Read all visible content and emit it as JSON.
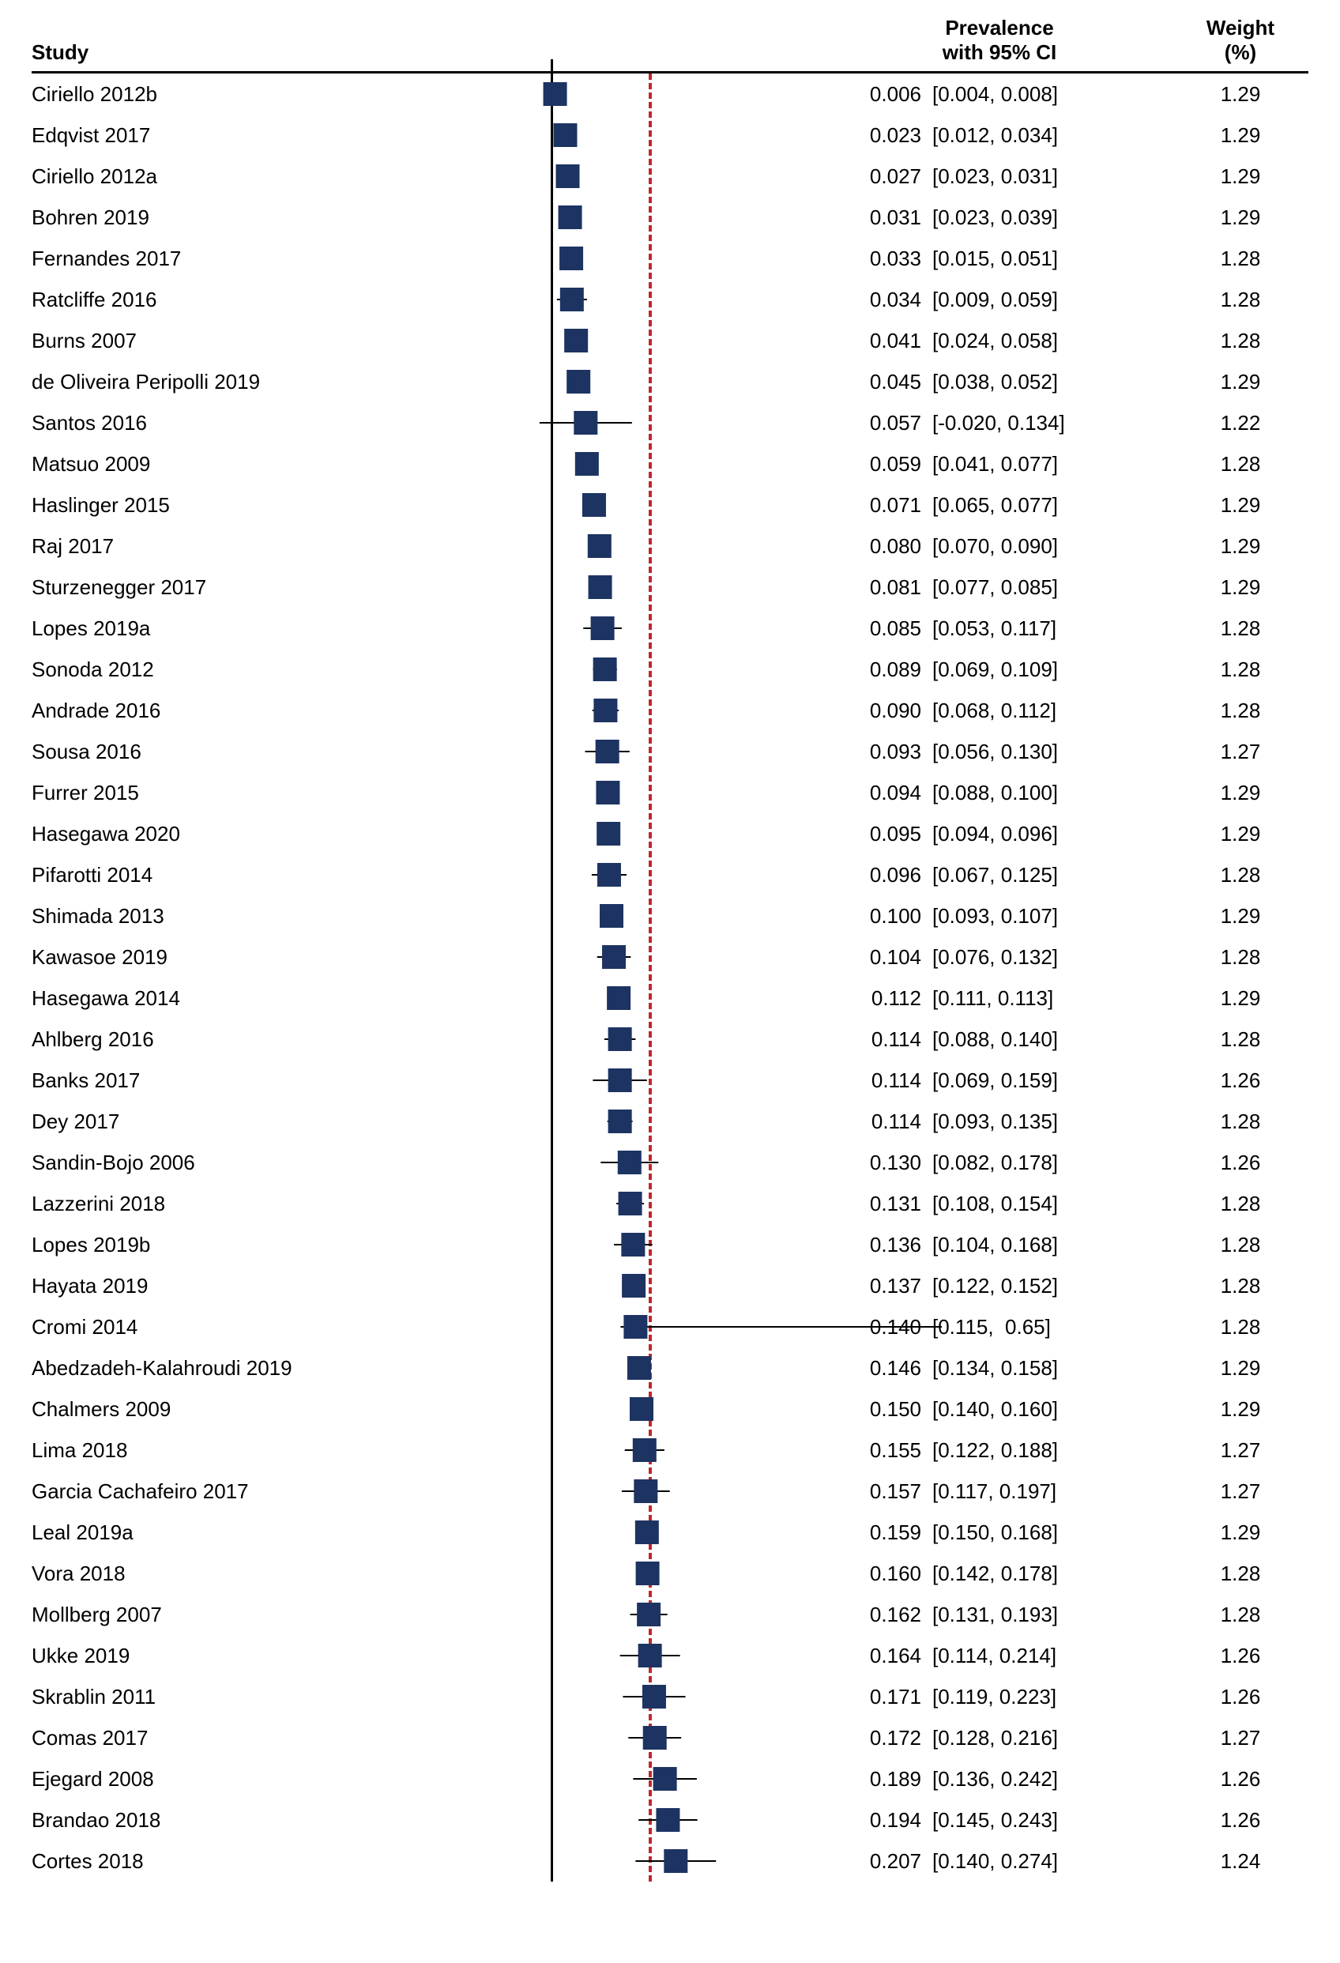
{
  "chart": {
    "type": "forest-plot",
    "header": {
      "study": "Study",
      "prevalence_line1": "Prevalence",
      "prevalence_line2": "with 95% CI",
      "weight_line1": "Weight",
      "weight_line2": "(%)"
    },
    "plot": {
      "xmin": -0.05,
      "xmax": 0.45,
      "zero_line_at": 0.0,
      "ref_line_at": 0.165,
      "ref_line_color": "#c1272d",
      "ref_line_dash": "6,10",
      "marker_color": "#1d3362",
      "marker_size": 30,
      "ci_line_color": "#000000",
      "background_color": "#ffffff"
    },
    "font": {
      "family": "Arial",
      "size_pt": 20,
      "header_weight": 700,
      "row_weight": 400
    },
    "studies": [
      {
        "label": "Ciriello 2012b",
        "pe": 0.006,
        "ci_lo": 0.004,
        "ci_hi": 0.008,
        "weight": 1.29,
        "pe_str": "0.006",
        "ci_str": "[0.004, 0.008]",
        "w_str": "1.29"
      },
      {
        "label": "Edqvist 2017",
        "pe": 0.023,
        "ci_lo": 0.012,
        "ci_hi": 0.034,
        "weight": 1.29,
        "pe_str": "0.023",
        "ci_str": "[0.012, 0.034]",
        "w_str": "1.29"
      },
      {
        "label": "Ciriello 2012a",
        "pe": 0.027,
        "ci_lo": 0.023,
        "ci_hi": 0.031,
        "weight": 1.29,
        "pe_str": "0.027",
        "ci_str": "[0.023, 0.031]",
        "w_str": "1.29"
      },
      {
        "label": "Bohren 2019",
        "pe": 0.031,
        "ci_lo": 0.023,
        "ci_hi": 0.039,
        "weight": 1.29,
        "pe_str": "0.031",
        "ci_str": "[0.023, 0.039]",
        "w_str": "1.29"
      },
      {
        "label": "Fernandes 2017",
        "pe": 0.033,
        "ci_lo": 0.015,
        "ci_hi": 0.051,
        "weight": 1.28,
        "pe_str": "0.033",
        "ci_str": "[0.015, 0.051]",
        "w_str": "1.28"
      },
      {
        "label": "Ratcliffe 2016",
        "pe": 0.034,
        "ci_lo": 0.009,
        "ci_hi": 0.059,
        "weight": 1.28,
        "pe_str": "0.034",
        "ci_str": "[0.009, 0.059]",
        "w_str": "1.28"
      },
      {
        "label": "Burns 2007",
        "pe": 0.041,
        "ci_lo": 0.024,
        "ci_hi": 0.058,
        "weight": 1.28,
        "pe_str": "0.041",
        "ci_str": "[0.024, 0.058]",
        "w_str": "1.28"
      },
      {
        "label": "de Oliveira Peripolli 2019",
        "pe": 0.045,
        "ci_lo": 0.038,
        "ci_hi": 0.052,
        "weight": 1.29,
        "pe_str": "0.045",
        "ci_str": "[0.038, 0.052]",
        "w_str": "1.29"
      },
      {
        "label": "Santos 2016",
        "pe": 0.057,
        "ci_lo": -0.02,
        "ci_hi": 0.134,
        "weight": 1.22,
        "pe_str": "0.057",
        "ci_str": "[-0.020, 0.134]",
        "w_str": "1.22"
      },
      {
        "label": "Matsuo 2009",
        "pe": 0.059,
        "ci_lo": 0.041,
        "ci_hi": 0.077,
        "weight": 1.28,
        "pe_str": "0.059",
        "ci_str": "[0.041, 0.077]",
        "w_str": "1.28"
      },
      {
        "label": "Haslinger 2015",
        "pe": 0.071,
        "ci_lo": 0.065,
        "ci_hi": 0.077,
        "weight": 1.29,
        "pe_str": "0.071",
        "ci_str": "[0.065, 0.077]",
        "w_str": "1.29"
      },
      {
        "label": "Raj 2017",
        "pe": 0.08,
        "ci_lo": 0.07,
        "ci_hi": 0.09,
        "weight": 1.29,
        "pe_str": "0.080",
        "ci_str": "[0.070, 0.090]",
        "w_str": "1.29"
      },
      {
        "label": "Sturzenegger 2017",
        "pe": 0.081,
        "ci_lo": 0.077,
        "ci_hi": 0.085,
        "weight": 1.29,
        "pe_str": "0.081",
        "ci_str": "[0.077, 0.085]",
        "w_str": "1.29"
      },
      {
        "label": "Lopes 2019a",
        "pe": 0.085,
        "ci_lo": 0.053,
        "ci_hi": 0.117,
        "weight": 1.28,
        "pe_str": "0.085",
        "ci_str": "[0.053, 0.117]",
        "w_str": "1.28"
      },
      {
        "label": "Sonoda 2012",
        "pe": 0.089,
        "ci_lo": 0.069,
        "ci_hi": 0.109,
        "weight": 1.28,
        "pe_str": "0.089",
        "ci_str": "[0.069, 0.109]",
        "w_str": "1.28"
      },
      {
        "label": "Andrade 2016",
        "pe": 0.09,
        "ci_lo": 0.068,
        "ci_hi": 0.112,
        "weight": 1.28,
        "pe_str": "0.090",
        "ci_str": "[0.068, 0.112]",
        "w_str": "1.28"
      },
      {
        "label": "Sousa 2016",
        "pe": 0.093,
        "ci_lo": 0.056,
        "ci_hi": 0.13,
        "weight": 1.27,
        "pe_str": "0.093",
        "ci_str": "[0.056, 0.130]",
        "w_str": "1.27"
      },
      {
        "label": "Furrer 2015",
        "pe": 0.094,
        "ci_lo": 0.088,
        "ci_hi": 0.1,
        "weight": 1.29,
        "pe_str": "0.094",
        "ci_str": "[0.088, 0.100]",
        "w_str": "1.29"
      },
      {
        "label": "Hasegawa 2020",
        "pe": 0.095,
        "ci_lo": 0.094,
        "ci_hi": 0.096,
        "weight": 1.29,
        "pe_str": "0.095",
        "ci_str": "[0.094, 0.096]",
        "w_str": "1.29"
      },
      {
        "label": "Pifarotti 2014",
        "pe": 0.096,
        "ci_lo": 0.067,
        "ci_hi": 0.125,
        "weight": 1.28,
        "pe_str": "0.096",
        "ci_str": "[0.067, 0.125]",
        "w_str": "1.28"
      },
      {
        "label": "Shimada 2013",
        "pe": 0.1,
        "ci_lo": 0.093,
        "ci_hi": 0.107,
        "weight": 1.29,
        "pe_str": "0.100",
        "ci_str": "[0.093, 0.107]",
        "w_str": "1.29"
      },
      {
        "label": "Kawasoe 2019",
        "pe": 0.104,
        "ci_lo": 0.076,
        "ci_hi": 0.132,
        "weight": 1.28,
        "pe_str": "0.104",
        "ci_str": "[0.076, 0.132]",
        "w_str": "1.28"
      },
      {
        "label": "Hasegawa 2014",
        "pe": 0.112,
        "ci_lo": 0.111,
        "ci_hi": 0.113,
        "weight": 1.29,
        "pe_str": "0.112",
        "ci_str": "[0.111, 0.113]",
        "w_str": "1.29"
      },
      {
        "label": "Ahlberg 2016",
        "pe": 0.114,
        "ci_lo": 0.088,
        "ci_hi": 0.14,
        "weight": 1.28,
        "pe_str": "0.114",
        "ci_str": "[0.088, 0.140]",
        "w_str": "1.28"
      },
      {
        "label": "Banks 2017",
        "pe": 0.114,
        "ci_lo": 0.069,
        "ci_hi": 0.159,
        "weight": 1.26,
        "pe_str": "0.114",
        "ci_str": "[0.069, 0.159]",
        "w_str": "1.26"
      },
      {
        "label": "Dey 2017",
        "pe": 0.114,
        "ci_lo": 0.093,
        "ci_hi": 0.135,
        "weight": 1.28,
        "pe_str": "0.114",
        "ci_str": "[0.093, 0.135]",
        "w_str": "1.28"
      },
      {
        "label": "Sandin-Bojo 2006",
        "pe": 0.13,
        "ci_lo": 0.082,
        "ci_hi": 0.178,
        "weight": 1.26,
        "pe_str": "0.130",
        "ci_str": "[0.082, 0.178]",
        "w_str": "1.26"
      },
      {
        "label": "Lazzerini 2018",
        "pe": 0.131,
        "ci_lo": 0.108,
        "ci_hi": 0.154,
        "weight": 1.28,
        "pe_str": "0.131",
        "ci_str": "[0.108, 0.154]",
        "w_str": "1.28"
      },
      {
        "label": "Lopes 2019b",
        "pe": 0.136,
        "ci_lo": 0.104,
        "ci_hi": 0.168,
        "weight": 1.28,
        "pe_str": "0.136",
        "ci_str": "[0.104, 0.168]",
        "w_str": "1.28"
      },
      {
        "label": "Hayata 2019",
        "pe": 0.137,
        "ci_lo": 0.122,
        "ci_hi": 0.152,
        "weight": 1.28,
        "pe_str": "0.137",
        "ci_str": "[0.122, 0.152]",
        "w_str": "1.28"
      },
      {
        "label": "Cromi 2014",
        "pe": 0.14,
        "ci_lo": 0.115,
        "ci_hi": 0.65,
        "weight": 1.28,
        "pe_str": "0.140",
        "ci_str": "[0.115,  0.65]",
        "w_str": "1.28"
      },
      {
        "label": "Abedzadeh-Kalahroudi 2019",
        "pe": 0.146,
        "ci_lo": 0.134,
        "ci_hi": 0.158,
        "weight": 1.29,
        "pe_str": "0.146",
        "ci_str": "[0.134, 0.158]",
        "w_str": "1.29"
      },
      {
        "label": "Chalmers 2009",
        "pe": 0.15,
        "ci_lo": 0.14,
        "ci_hi": 0.16,
        "weight": 1.29,
        "pe_str": "0.150",
        "ci_str": "[0.140, 0.160]",
        "w_str": "1.29"
      },
      {
        "label": "Lima 2018",
        "pe": 0.155,
        "ci_lo": 0.122,
        "ci_hi": 0.188,
        "weight": 1.27,
        "pe_str": "0.155",
        "ci_str": "[0.122, 0.188]",
        "w_str": "1.27"
      },
      {
        "label": "Garcia Cachafeiro 2017",
        "pe": 0.157,
        "ci_lo": 0.117,
        "ci_hi": 0.197,
        "weight": 1.27,
        "pe_str": "0.157",
        "ci_str": "[0.117, 0.197]",
        "w_str": "1.27"
      },
      {
        "label": "Leal 2019a",
        "pe": 0.159,
        "ci_lo": 0.15,
        "ci_hi": 0.168,
        "weight": 1.29,
        "pe_str": "0.159",
        "ci_str": "[0.150, 0.168]",
        "w_str": "1.29"
      },
      {
        "label": "Vora 2018",
        "pe": 0.16,
        "ci_lo": 0.142,
        "ci_hi": 0.178,
        "weight": 1.28,
        "pe_str": "0.160",
        "ci_str": "[0.142, 0.178]",
        "w_str": "1.28"
      },
      {
        "label": "Mollberg 2007",
        "pe": 0.162,
        "ci_lo": 0.131,
        "ci_hi": 0.193,
        "weight": 1.28,
        "pe_str": "0.162",
        "ci_str": "[0.131, 0.193]",
        "w_str": "1.28"
      },
      {
        "label": "Ukke 2019",
        "pe": 0.164,
        "ci_lo": 0.114,
        "ci_hi": 0.214,
        "weight": 1.26,
        "pe_str": "0.164",
        "ci_str": "[0.114, 0.214]",
        "w_str": "1.26"
      },
      {
        "label": "Skrablin 2011",
        "pe": 0.171,
        "ci_lo": 0.119,
        "ci_hi": 0.223,
        "weight": 1.26,
        "pe_str": "0.171",
        "ci_str": "[0.119, 0.223]",
        "w_str": "1.26"
      },
      {
        "label": "Comas 2017",
        "pe": 0.172,
        "ci_lo": 0.128,
        "ci_hi": 0.216,
        "weight": 1.27,
        "pe_str": "0.172",
        "ci_str": "[0.128, 0.216]",
        "w_str": "1.27"
      },
      {
        "label": "Ejegard 2008",
        "pe": 0.189,
        "ci_lo": 0.136,
        "ci_hi": 0.242,
        "weight": 1.26,
        "pe_str": "0.189",
        "ci_str": "[0.136, 0.242]",
        "w_str": "1.26"
      },
      {
        "label": "Brandao 2018",
        "pe": 0.194,
        "ci_lo": 0.145,
        "ci_hi": 0.243,
        "weight": 1.26,
        "pe_str": "0.194",
        "ci_str": "[0.145, 0.243]",
        "w_str": "1.26"
      },
      {
        "label": "Cortes 2018",
        "pe": 0.207,
        "ci_lo": 0.14,
        "ci_hi": 0.274,
        "weight": 1.24,
        "pe_str": "0.207",
        "ci_str": "[0.140, 0.274]",
        "w_str": "1.24"
      }
    ]
  }
}
